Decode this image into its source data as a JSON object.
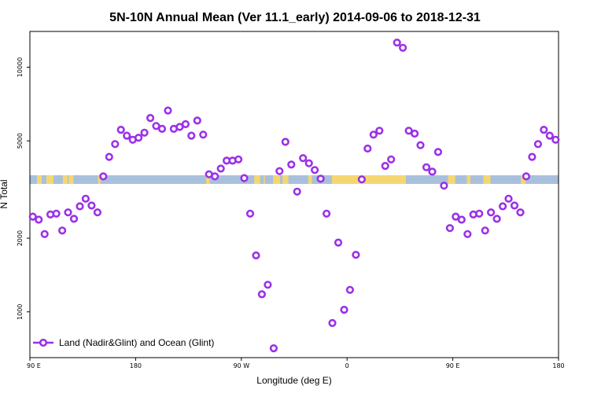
{
  "chart_data": {
    "type": "scatter",
    "title": "5N-10N Annual Mean (Ver 11.1_early)   2014-09-06 to 2018-12-31",
    "xlabel": "Longitude (deg E)",
    "ylabel": "N Total",
    "xlim": [
      90,
      540
    ],
    "ylim": [
      650,
      14000
    ],
    "yscale": "log",
    "x_ticks": [
      {
        "value": 90,
        "label": "90 E"
      },
      {
        "value": 180,
        "label": "180"
      },
      {
        "value": 270,
        "label": "90 W"
      },
      {
        "value": 360,
        "label": "0"
      },
      {
        "value": 450,
        "label": "90 E"
      },
      {
        "value": 540,
        "label": "180"
      }
    ],
    "y_ticks": [
      {
        "value": 1000,
        "label": "1000"
      },
      {
        "value": 2000,
        "label": "2000"
      },
      {
        "value": 5000,
        "label": "5000"
      },
      {
        "value": 10000,
        "label": "10000"
      }
    ],
    "legend": {
      "label": "Land (Nadir&Glint) and Ocean (Glint)",
      "position": "bottom-left"
    },
    "map_band": {
      "lat_range": "5N-10N",
      "ocean_color": "#a9c0dd",
      "land_color": "#f5d771"
    },
    "series": [
      {
        "name": "Land (Nadir&Glint) and Ocean (Glint)",
        "color": "#9b30e8",
        "x": [
          92.5,
          97.5,
          102.5,
          107.5,
          112.5,
          117.5,
          122.5,
          127.5,
          132.5,
          137.5,
          142.5,
          147.5,
          152.5,
          157.5,
          162.5,
          167.5,
          172.5,
          177.5,
          182.5,
          187.5,
          192.5,
          197.5,
          202.5,
          207.5,
          212.5,
          217.5,
          222.5,
          227.5,
          232.5,
          237.5,
          242.5,
          247.5,
          252.5,
          257.5,
          262.5,
          267.5,
          272.5,
          277.5,
          282.5,
          287.5,
          292.5,
          297.5,
          302.5,
          307.5,
          312.5,
          317.5,
          322.5,
          327.5,
          332.5,
          337.5,
          342.5,
          347.5,
          352.5,
          357.5,
          362.5,
          367.5,
          372.5,
          377.5,
          382.5,
          387.5,
          392.5,
          397.5,
          402.5,
          407.5,
          412.5,
          417.5,
          422.5,
          427.5,
          432.5,
          437.5,
          442.5,
          447.5,
          452.5,
          457.5,
          462.5,
          467.5,
          472.5,
          477.5,
          482.5,
          487.5,
          492.5,
          497.5,
          502.5,
          507.5,
          512.5,
          517.5,
          522.5,
          527.5,
          532.5,
          537.5
        ],
        "y": [
          2450,
          2380,
          2080,
          2500,
          2520,
          2150,
          2550,
          2400,
          2700,
          2900,
          2720,
          2550,
          3580,
          4300,
          4850,
          5550,
          5250,
          5050,
          5150,
          5400,
          6200,
          5750,
          5600,
          6650,
          5600,
          5700,
          5850,
          5250,
          6050,
          5300,
          3650,
          3580,
          3850,
          4150,
          4150,
          4200,
          3520,
          2520,
          1700,
          1180,
          1290,
          710,
          3760,
          4950,
          4000,
          3100,
          4250,
          4050,
          3800,
          3500,
          2520,
          900,
          1920,
          1020,
          1230,
          1710,
          3480,
          4650,
          5300,
          5500,
          3950,
          4200,
          12600,
          12000,
          5500,
          5350,
          4800,
          3900,
          3740,
          4500,
          3280,
          2200,
          2450,
          2380,
          2080,
          2500,
          2520,
          2150,
          2550,
          2400,
          2700,
          2900,
          2720,
          2550,
          3580,
          4300,
          4850,
          5550,
          5250,
          5050
        ]
      }
    ]
  }
}
